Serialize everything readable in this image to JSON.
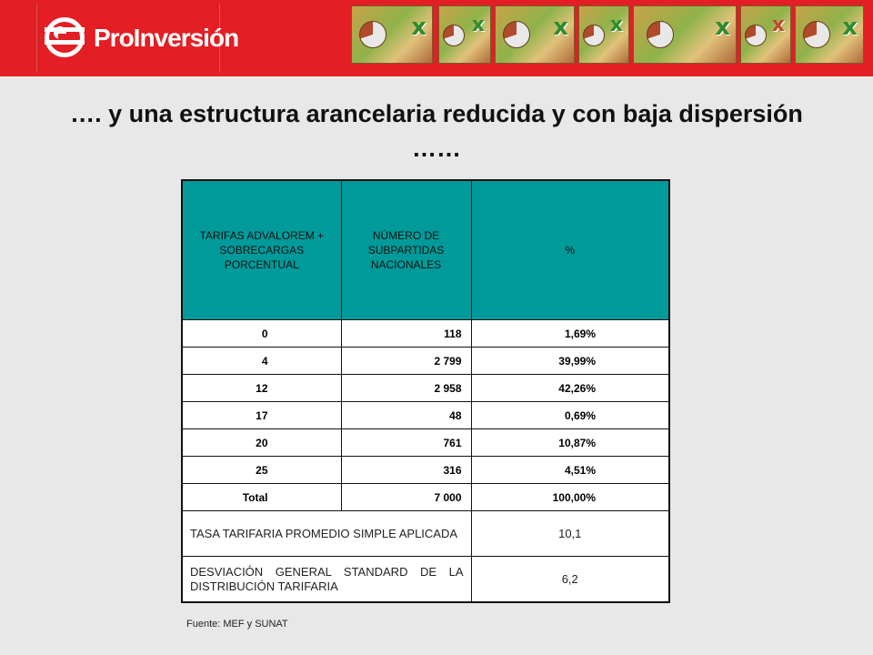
{
  "header": {
    "brand_text": "ProInversión",
    "brand_color": "#e31e24",
    "thumbnail_icons": [
      "excel-pie-icon",
      "excel-pie-icon",
      "excel-pie-icon",
      "excel-pie-icon",
      "excel-pie-icon",
      "excel-pie-icon",
      "excel-pie-icon"
    ]
  },
  "title": "…. y una estructura arancelaria reducida y con baja dispersión ……",
  "table": {
    "headers": [
      "TARIFAS ADVALOREM + SOBRECARGAS PORCENTUAL",
      "NÚMERO DE SUBPARTIDAS NACIONALES",
      "%"
    ],
    "header_color": "#009a9a",
    "rows": [
      {
        "tarifa": "0",
        "numero": "118",
        "pct": "1,69%"
      },
      {
        "tarifa": "4",
        "numero": "2 799",
        "pct": "39,99%"
      },
      {
        "tarifa": "12",
        "numero": "2 958",
        "pct": "42,26%"
      },
      {
        "tarifa": "17",
        "numero": "48",
        "pct": "0,69%"
      },
      {
        "tarifa": "20",
        "numero": "761",
        "pct": "10,87%"
      },
      {
        "tarifa": "25",
        "numero": "316",
        "pct": "4,51%"
      },
      {
        "tarifa": "Total",
        "numero": "7 000",
        "pct": "100,00%"
      }
    ],
    "stats": [
      {
        "label": "TASA TARIFARIA PROMEDIO SIMPLE APLICADA",
        "value": "10,1"
      },
      {
        "label": "DESVIACIÓN GENERAL STANDARD DE LA DISTRIBUCIÓN TARIFARIA",
        "value": "6,2"
      }
    ]
  },
  "source": "Fuente: MEF y SUNAT"
}
